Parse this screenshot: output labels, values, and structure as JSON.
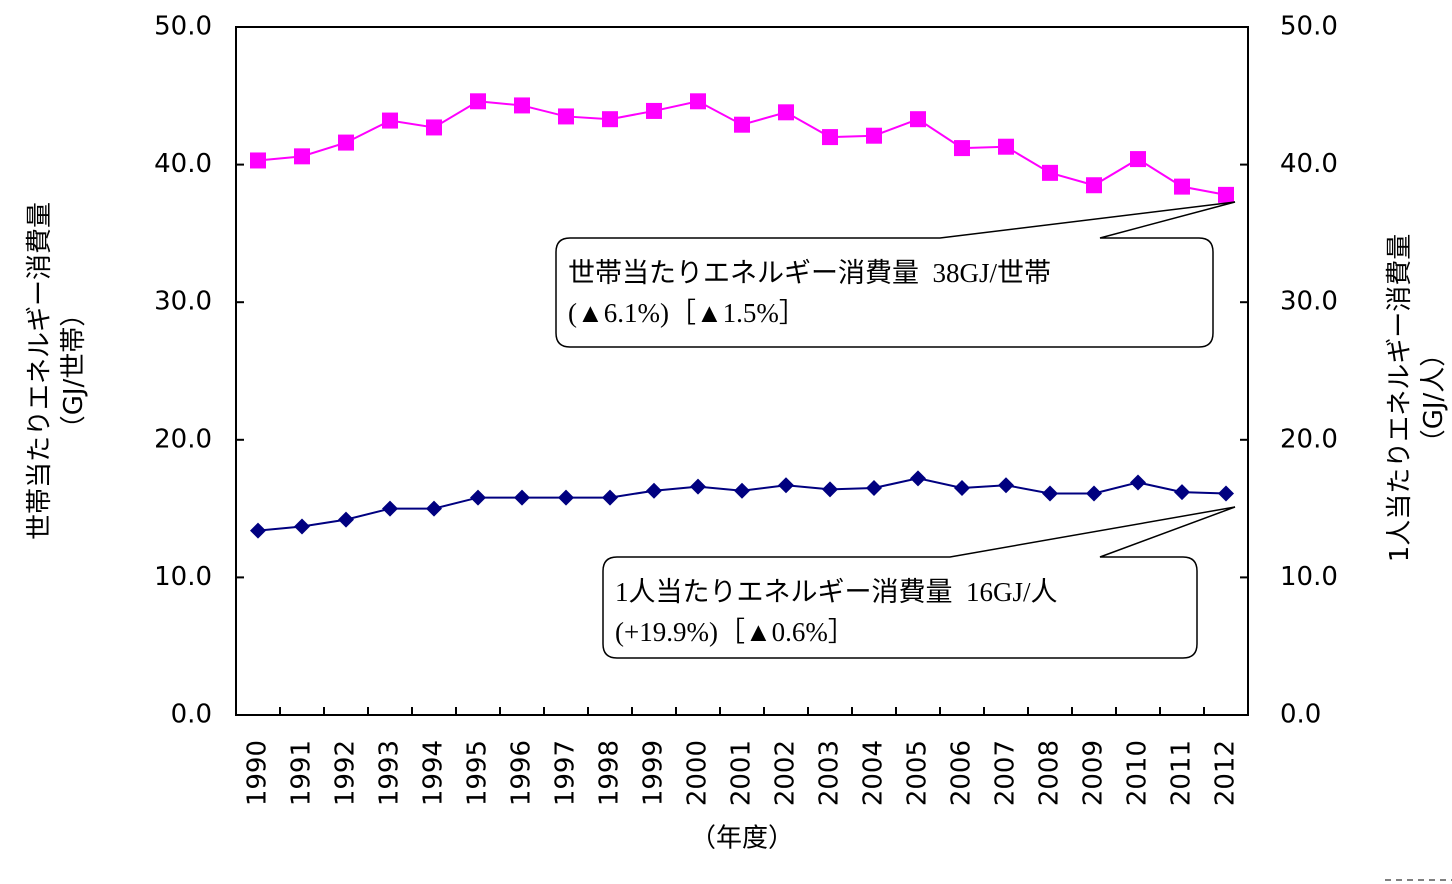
{
  "chart_data": {
    "type": "line",
    "ylabel": [
      "世帯当たりエネルギー消費量",
      "（GJ/世帯）"
    ],
    "y2label": [
      "1人当たりエネルギー消費量",
      "（GJ/人）"
    ],
    "xlabel": "（年度）",
    "categories": [
      "1990",
      "1991",
      "1992",
      "1993",
      "1994",
      "1995",
      "1996",
      "1997",
      "1998",
      "1999",
      "2000",
      "2001",
      "2002",
      "2003",
      "2004",
      "2005",
      "2006",
      "2007",
      "2008",
      "2009",
      "2010",
      "2011",
      "2012"
    ],
    "series": [
      {
        "name": "世帯当たりエネルギー消費量",
        "color": "#ff00ff",
        "marker": "square",
        "values": [
          40.3,
          40.6,
          41.6,
          43.2,
          42.7,
          44.6,
          44.3,
          43.5,
          43.3,
          43.9,
          44.6,
          42.9,
          43.8,
          42.0,
          42.1,
          43.3,
          41.2,
          41.3,
          39.4,
          38.5,
          40.4,
          38.4,
          37.8
        ]
      },
      {
        "name": "1人当たりエネルギー消費量",
        "color": "#000080",
        "marker": "diamond",
        "axis": "y2",
        "values": [
          13.4,
          13.7,
          14.2,
          15.0,
          15.0,
          15.8,
          15.8,
          15.8,
          15.8,
          16.3,
          16.6,
          16.3,
          16.7,
          16.4,
          16.5,
          17.2,
          16.5,
          16.7,
          16.1,
          16.1,
          16.9,
          16.2,
          16.1
        ]
      }
    ],
    "ylim": [
      0,
      50
    ],
    "yticks": [
      {
        "value": 0,
        "label": "0.0"
      },
      {
        "value": 10,
        "label": "10.0"
      },
      {
        "value": 20,
        "label": "20.0"
      },
      {
        "value": 30,
        "label": "30.0"
      },
      {
        "value": 40,
        "label": "40.0"
      },
      {
        "value": 50,
        "label": "50.0"
      }
    ],
    "y2lim": [
      0,
      50
    ],
    "y2ticks": [
      {
        "value": 0,
        "label": "0.0"
      },
      {
        "value": 10,
        "label": "10.0"
      },
      {
        "value": 20,
        "label": "20.0"
      },
      {
        "value": 30,
        "label": "30.0"
      },
      {
        "value": 40,
        "label": "40.0"
      },
      {
        "value": 50,
        "label": "50.0"
      }
    ],
    "grid": false,
    "annotations": [
      {
        "lines": [
          "世帯当たりエネルギー消費量  38GJ/世帯",
          "(▲6.1%)［▲1.5%］"
        ]
      },
      {
        "lines": [
          "1人当たりエネルギー消費量  16GJ/人",
          "(+19.9%)［▲0.6%］"
        ]
      }
    ]
  }
}
